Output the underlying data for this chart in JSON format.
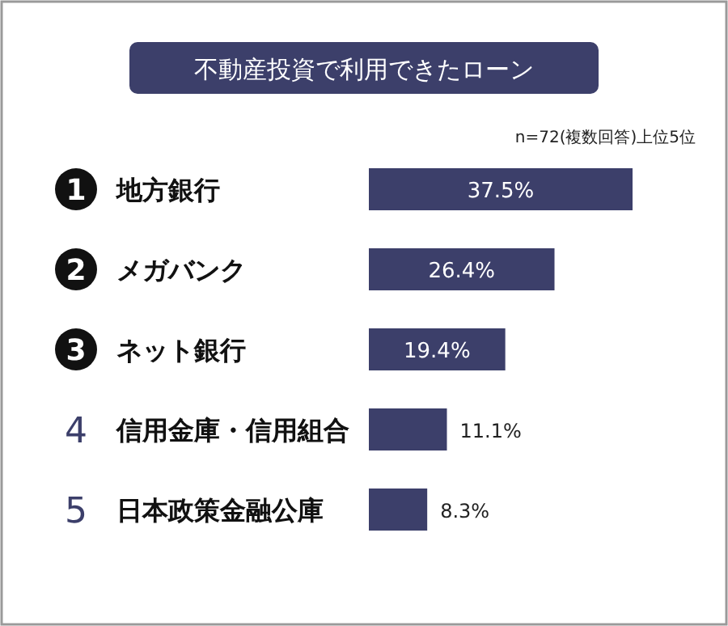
{
  "chart_data": {
    "type": "bar",
    "orientation": "horizontal",
    "title": "不動産投資で利用できたローン",
    "subtitle": "n=72(複数回答)上位5位",
    "categories": [
      "地方銀行",
      "メガバンク",
      "ネット銀行",
      "信用金庫・信用組合",
      "日本政策金融公庫"
    ],
    "values": [
      37.5,
      26.4,
      19.4,
      11.1,
      8.3
    ],
    "value_labels": [
      "37.5%",
      "26.4%",
      "19.4%",
      "11.1%",
      "8.3%"
    ],
    "color": "#3c3f6a",
    "annotations": [
      "1",
      "2",
      "3",
      "4",
      "5"
    ]
  }
}
